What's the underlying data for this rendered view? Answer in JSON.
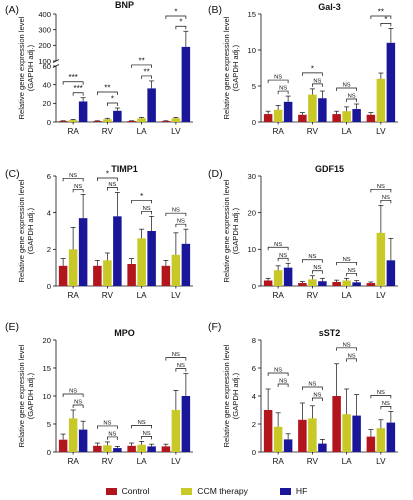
{
  "colors": {
    "Control": "#b3151d",
    "CCM therapy": "#c8c826",
    "HF": "#1a169a"
  },
  "ylabel": [
    "Relative gene expression level",
    "(GAPDH adj.)"
  ],
  "legend": [
    "Control",
    "CCM therapy",
    "HF"
  ],
  "chart_data": [
    {
      "type": "bar",
      "panel": "(A)",
      "title": "BNP",
      "categories": [
        "RA",
        "RV",
        "LA",
        "LV"
      ],
      "series": [
        {
          "name": "Control",
          "values": [
            1,
            1,
            1,
            1
          ],
          "errors": [
            0.3,
            0.3,
            0.3,
            0.3
          ]
        },
        {
          "name": "CCM therapy",
          "values": [
            2,
            3,
            4,
            4
          ],
          "errors": [
            0.8,
            1,
            1,
            1
          ]
        },
        {
          "name": "HF",
          "values": [
            22,
            12,
            36,
            190
          ],
          "errors": [
            4,
            3,
            8,
            100
          ]
        }
      ],
      "axis_break": {
        "lower_ticks": [
          0,
          20,
          40,
          60
        ],
        "upper_ticks": [
          100,
          200,
          300,
          400
        ]
      },
      "annotations": [
        {
          "cat": "RA",
          "from": 0,
          "to": 2,
          "label": "***"
        },
        {
          "cat": "RA",
          "from": 1,
          "to": 2,
          "label": "***"
        },
        {
          "cat": "RV",
          "from": 0,
          "to": 2,
          "label": "**"
        },
        {
          "cat": "RV",
          "from": 1,
          "to": 2,
          "label": "*"
        },
        {
          "cat": "LA",
          "from": 0,
          "to": 2,
          "label": "**"
        },
        {
          "cat": "LA",
          "from": 1,
          "to": 2,
          "label": "**"
        },
        {
          "cat": "LV",
          "from": 0,
          "to": 2,
          "label": "*"
        },
        {
          "cat": "LV",
          "from": 1,
          "to": 2,
          "label": "*"
        }
      ]
    },
    {
      "type": "bar",
      "panel": "(B)",
      "title": "Gal-3",
      "categories": [
        "RA",
        "RV",
        "LA",
        "LV"
      ],
      "ylim": [
        0,
        15
      ],
      "yticks": [
        0,
        5,
        10,
        15
      ],
      "series": [
        {
          "name": "Control",
          "values": [
            1.1,
            1,
            1.1,
            1
          ],
          "errors": [
            0.4,
            0.3,
            0.4,
            0.3
          ]
        },
        {
          "name": "CCM therapy",
          "values": [
            1.7,
            3.8,
            1.5,
            6
          ],
          "errors": [
            0.6,
            0.8,
            0.6,
            0.8
          ]
        },
        {
          "name": "HF",
          "values": [
            2.8,
            3.3,
            1.8,
            11
          ],
          "errors": [
            0.8,
            1,
            0.7,
            2
          ]
        }
      ],
      "annotations": [
        {
          "cat": "RA",
          "from": 0,
          "to": 2,
          "label": "NS"
        },
        {
          "cat": "RA",
          "from": 1,
          "to": 2,
          "label": "NS"
        },
        {
          "cat": "RV",
          "from": 0,
          "to": 2,
          "label": "*"
        },
        {
          "cat": "RV",
          "from": 1,
          "to": 2,
          "label": "NS"
        },
        {
          "cat": "LA",
          "from": 0,
          "to": 2,
          "label": "NS"
        },
        {
          "cat": "LA",
          "from": 1,
          "to": 2,
          "label": "NS"
        },
        {
          "cat": "LV",
          "from": 0,
          "to": 2,
          "label": "**"
        },
        {
          "cat": "LV",
          "from": 1,
          "to": 2,
          "label": "*"
        }
      ]
    },
    {
      "type": "bar",
      "panel": "(C)",
      "title": "TIMP1",
      "categories": [
        "RA",
        "RV",
        "LA",
        "LV"
      ],
      "ylim": [
        0,
        6
      ],
      "yticks": [
        0,
        2,
        4,
        6
      ],
      "series": [
        {
          "name": "Control",
          "values": [
            1.1,
            1.1,
            1.2,
            1.1
          ],
          "errors": [
            0.4,
            0.3,
            0.3,
            0.3
          ]
        },
        {
          "name": "CCM therapy",
          "values": [
            2,
            1.4,
            2.6,
            1.7
          ],
          "errors": [
            1.2,
            0.4,
            0.5,
            1.2
          ]
        },
        {
          "name": "HF",
          "values": [
            3.7,
            3.8,
            3,
            2.3
          ],
          "errors": [
            1.3,
            1.3,
            0.8,
            0.8
          ]
        }
      ],
      "annotations": [
        {
          "cat": "RA",
          "from": 0,
          "to": 2,
          "label": "NS"
        },
        {
          "cat": "RA",
          "from": 1,
          "to": 2,
          "label": "NS"
        },
        {
          "cat": "RV",
          "from": 0,
          "to": 2,
          "label": "*"
        },
        {
          "cat": "RV",
          "from": 1,
          "to": 2,
          "label": "NS"
        },
        {
          "cat": "LA",
          "from": 0,
          "to": 2,
          "label": "*"
        },
        {
          "cat": "LA",
          "from": 1,
          "to": 2,
          "label": "NS"
        },
        {
          "cat": "LV",
          "from": 0,
          "to": 2,
          "label": "NS"
        },
        {
          "cat": "LV",
          "from": 1,
          "to": 2,
          "label": "NS"
        }
      ]
    },
    {
      "type": "bar",
      "panel": "(D)",
      "title": "GDF15",
      "categories": [
        "RA",
        "RV",
        "LA",
        "LV"
      ],
      "ylim": [
        0,
        30
      ],
      "yticks": [
        0,
        10,
        20,
        30
      ],
      "series": [
        {
          "name": "Control",
          "values": [
            1.5,
            0.8,
            1.1,
            0.8
          ],
          "errors": [
            0.6,
            0.4,
            0.5,
            0.3
          ]
        },
        {
          "name": "CCM therapy",
          "values": [
            4.3,
            1.8,
            1.5,
            14.5
          ],
          "errors": [
            1.2,
            1,
            0.6,
            7.5
          ]
        },
        {
          "name": "HF",
          "values": [
            5,
            1.3,
            1,
            7
          ],
          "errors": [
            1.2,
            0.8,
            0.5,
            6
          ]
        }
      ],
      "annotations": [
        {
          "cat": "RA",
          "from": 0,
          "to": 2,
          "label": "NS"
        },
        {
          "cat": "RA",
          "from": 1,
          "to": 2,
          "label": "NS"
        },
        {
          "cat": "RV",
          "from": 0,
          "to": 2,
          "label": "NS"
        },
        {
          "cat": "RV",
          "from": 1,
          "to": 2,
          "label": "NS"
        },
        {
          "cat": "LA",
          "from": 0,
          "to": 2,
          "label": "NS"
        },
        {
          "cat": "LA",
          "from": 1,
          "to": 2,
          "label": "NS"
        },
        {
          "cat": "LV",
          "from": 0,
          "to": 2,
          "label": "NS"
        },
        {
          "cat": "LV",
          "from": 1,
          "to": 2,
          "label": "NS"
        }
      ]
    },
    {
      "type": "bar",
      "panel": "(E)",
      "title": "MPO",
      "categories": [
        "RA",
        "RV",
        "LA",
        "LV"
      ],
      "ylim": [
        0,
        20
      ],
      "yticks": [
        0,
        5,
        10,
        15,
        20
      ],
      "series": [
        {
          "name": "Control",
          "values": [
            2.2,
            1.1,
            1.1,
            1
          ],
          "errors": [
            1,
            0.5,
            0.5,
            0.4
          ]
        },
        {
          "name": "CCM therapy",
          "values": [
            6,
            1.2,
            1.3,
            7.5
          ],
          "errors": [
            1.5,
            0.6,
            0.6,
            3.5
          ]
        },
        {
          "name": "HF",
          "values": [
            4,
            0.7,
            1,
            10
          ],
          "errors": [
            1.5,
            0.3,
            0.4,
            4
          ]
        }
      ],
      "annotations": [
        {
          "cat": "RA",
          "from": 0,
          "to": 2,
          "label": "NS"
        },
        {
          "cat": "RA",
          "from": 1,
          "to": 2,
          "label": "NS"
        },
        {
          "cat": "RV",
          "from": 0,
          "to": 2,
          "label": "NS"
        },
        {
          "cat": "RV",
          "from": 1,
          "to": 2,
          "label": "NS"
        },
        {
          "cat": "LA",
          "from": 0,
          "to": 2,
          "label": "NS"
        },
        {
          "cat": "LA",
          "from": 1,
          "to": 2,
          "label": "NS"
        },
        {
          "cat": "LV",
          "from": 0,
          "to": 2,
          "label": "NS"
        },
        {
          "cat": "LV",
          "from": 1,
          "to": 2,
          "label": "NS"
        }
      ]
    },
    {
      "type": "bar",
      "panel": "(F)",
      "title": "sST2",
      "categories": [
        "RA",
        "RV",
        "LA",
        "LV"
      ],
      "ylim": [
        0,
        8
      ],
      "yticks": [
        0,
        2,
        4,
        6,
        8
      ],
      "series": [
        {
          "name": "Control",
          "values": [
            3,
            2.3,
            4,
            1.1
          ],
          "errors": [
            1.5,
            1.2,
            2.3,
            0.5
          ]
        },
        {
          "name": "CCM therapy",
          "values": [
            1.8,
            2.4,
            2.7,
            1.7
          ],
          "errors": [
            1,
            0.9,
            1.8,
            0.6
          ]
        },
        {
          "name": "HF",
          "values": [
            0.9,
            0.6,
            2.6,
            2.1
          ],
          "errors": [
            0.4,
            0.3,
            1.5,
            0.8
          ]
        }
      ],
      "annotations": [
        {
          "cat": "RA",
          "from": 0,
          "to": 2,
          "label": "NS"
        },
        {
          "cat": "RA",
          "from": 1,
          "to": 2,
          "label": "NS"
        },
        {
          "cat": "RV",
          "from": 0,
          "to": 2,
          "label": "NS"
        },
        {
          "cat": "RV",
          "from": 1,
          "to": 2,
          "label": "NS"
        },
        {
          "cat": "LA",
          "from": 0,
          "to": 2,
          "label": "NS"
        },
        {
          "cat": "LA",
          "from": 1,
          "to": 2,
          "label": "NS"
        },
        {
          "cat": "LV",
          "from": 0,
          "to": 2,
          "label": "NS"
        },
        {
          "cat": "LV",
          "from": 1,
          "to": 2,
          "label": "NS"
        }
      ]
    }
  ]
}
